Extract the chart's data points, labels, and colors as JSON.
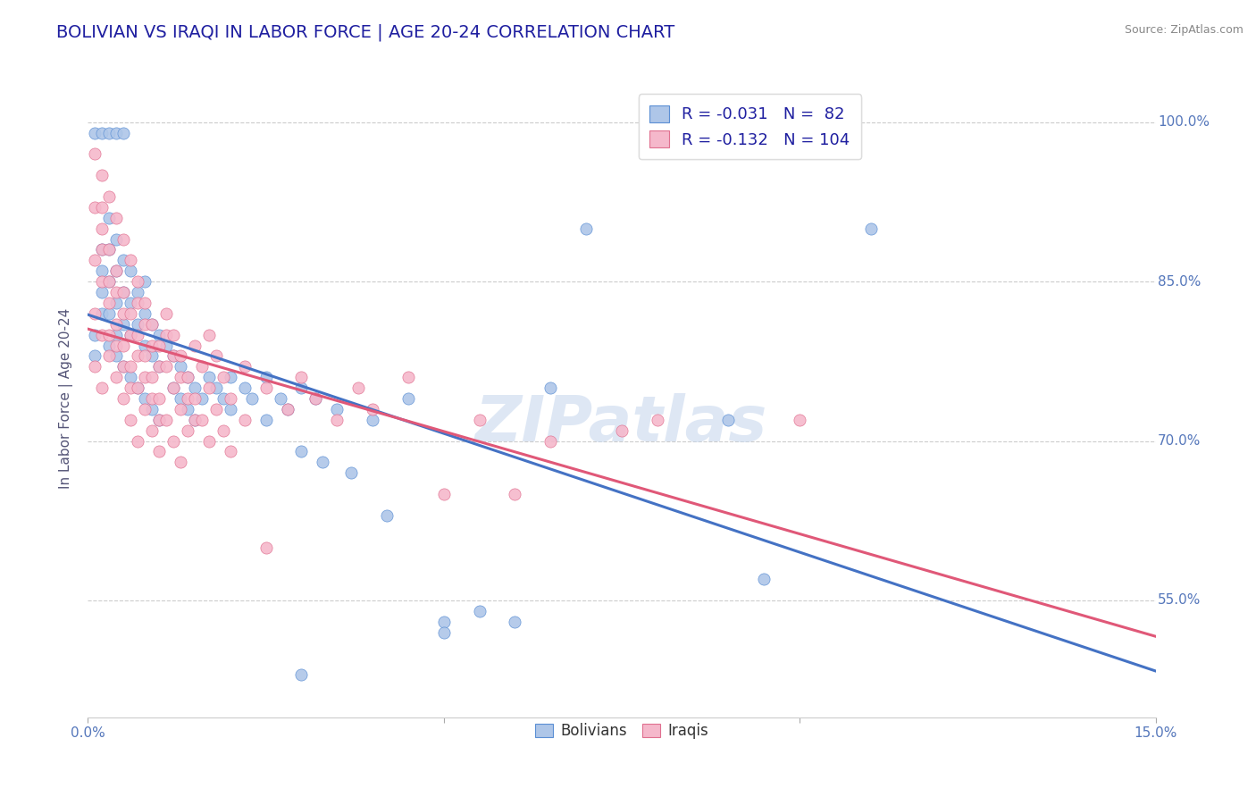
{
  "title": "BOLIVIAN VS IRAQI IN LABOR FORCE | AGE 20-24 CORRELATION CHART",
  "source": "Source: ZipAtlas.com",
  "ylabel": "In Labor Force | Age 20-24",
  "xlim": [
    0.0,
    0.15
  ],
  "ylim": [
    0.44,
    1.04
  ],
  "ytick_right_labels": [
    "55.0%",
    "70.0%",
    "85.0%",
    "100.0%"
  ],
  "ytick_right_values": [
    0.55,
    0.7,
    0.85,
    1.0
  ],
  "xtick_labels": [
    "0.0%",
    "15.0%"
  ],
  "xtick_values": [
    0.0,
    0.15
  ],
  "bolivian_color": "#aec6e8",
  "bolivian_edge_color": "#5b8fd4",
  "iraqi_color": "#f5b8cb",
  "iraqi_edge_color": "#e07090",
  "bolivian_line_color": "#4472c4",
  "iraqi_line_color": "#e05878",
  "R_bolivian": -0.031,
  "N_bolivian": 82,
  "R_iraqi": -0.132,
  "N_iraqi": 104,
  "watermark": "ZIPatlas",
  "title_color": "#1f1fa0",
  "title_fontsize": 14,
  "source_fontsize": 9,
  "axis_label_color": "#555577",
  "tick_color": "#5577bb",
  "legend_label_color": "#1f1fa0",
  "legend_R_color": "#cc2244",
  "marker_size": 90,
  "bolivian_scatter": [
    [
      0.001,
      0.99
    ],
    [
      0.002,
      0.99
    ],
    [
      0.003,
      0.99
    ],
    [
      0.004,
      0.99
    ],
    [
      0.005,
      0.99
    ],
    [
      0.001,
      0.78
    ],
    [
      0.001,
      0.8
    ],
    [
      0.002,
      0.82
    ],
    [
      0.002,
      0.84
    ],
    [
      0.002,
      0.86
    ],
    [
      0.002,
      0.88
    ],
    [
      0.003,
      0.79
    ],
    [
      0.003,
      0.82
    ],
    [
      0.003,
      0.85
    ],
    [
      0.003,
      0.88
    ],
    [
      0.003,
      0.91
    ],
    [
      0.004,
      0.8
    ],
    [
      0.004,
      0.83
    ],
    [
      0.004,
      0.86
    ],
    [
      0.004,
      0.89
    ],
    [
      0.004,
      0.78
    ],
    [
      0.005,
      0.81
    ],
    [
      0.005,
      0.84
    ],
    [
      0.005,
      0.87
    ],
    [
      0.005,
      0.77
    ],
    [
      0.006,
      0.8
    ],
    [
      0.006,
      0.83
    ],
    [
      0.006,
      0.86
    ],
    [
      0.006,
      0.76
    ],
    [
      0.007,
      0.81
    ],
    [
      0.007,
      0.84
    ],
    [
      0.007,
      0.75
    ],
    [
      0.008,
      0.79
    ],
    [
      0.008,
      0.82
    ],
    [
      0.008,
      0.85
    ],
    [
      0.008,
      0.74
    ],
    [
      0.009,
      0.78
    ],
    [
      0.009,
      0.81
    ],
    [
      0.009,
      0.73
    ],
    [
      0.01,
      0.77
    ],
    [
      0.01,
      0.8
    ],
    [
      0.01,
      0.72
    ],
    [
      0.011,
      0.79
    ],
    [
      0.012,
      0.78
    ],
    [
      0.012,
      0.75
    ],
    [
      0.013,
      0.77
    ],
    [
      0.013,
      0.74
    ],
    [
      0.014,
      0.76
    ],
    [
      0.014,
      0.73
    ],
    [
      0.015,
      0.75
    ],
    [
      0.015,
      0.72
    ],
    [
      0.016,
      0.74
    ],
    [
      0.017,
      0.76
    ],
    [
      0.018,
      0.75
    ],
    [
      0.019,
      0.74
    ],
    [
      0.02,
      0.76
    ],
    [
      0.02,
      0.73
    ],
    [
      0.022,
      0.75
    ],
    [
      0.023,
      0.74
    ],
    [
      0.025,
      0.76
    ],
    [
      0.025,
      0.72
    ],
    [
      0.027,
      0.74
    ],
    [
      0.028,
      0.73
    ],
    [
      0.03,
      0.75
    ],
    [
      0.03,
      0.69
    ],
    [
      0.032,
      0.74
    ],
    [
      0.033,
      0.68
    ],
    [
      0.035,
      0.73
    ],
    [
      0.037,
      0.67
    ],
    [
      0.04,
      0.72
    ],
    [
      0.042,
      0.63
    ],
    [
      0.045,
      0.74
    ],
    [
      0.05,
      0.53
    ],
    [
      0.055,
      0.54
    ],
    [
      0.06,
      0.53
    ],
    [
      0.065,
      0.75
    ],
    [
      0.07,
      0.9
    ],
    [
      0.09,
      0.72
    ],
    [
      0.095,
      0.57
    ],
    [
      0.11,
      0.9
    ],
    [
      0.03,
      0.48
    ],
    [
      0.05,
      0.52
    ]
  ],
  "iraqi_scatter": [
    [
      0.001,
      0.97
    ],
    [
      0.001,
      0.92
    ],
    [
      0.001,
      0.87
    ],
    [
      0.001,
      0.82
    ],
    [
      0.001,
      0.77
    ],
    [
      0.002,
      0.95
    ],
    [
      0.002,
      0.9
    ],
    [
      0.002,
      0.85
    ],
    [
      0.002,
      0.8
    ],
    [
      0.002,
      0.75
    ],
    [
      0.002,
      0.92
    ],
    [
      0.002,
      0.88
    ],
    [
      0.003,
      0.93
    ],
    [
      0.003,
      0.88
    ],
    [
      0.003,
      0.83
    ],
    [
      0.003,
      0.78
    ],
    [
      0.003,
      0.85
    ],
    [
      0.003,
      0.8
    ],
    [
      0.004,
      0.91
    ],
    [
      0.004,
      0.86
    ],
    [
      0.004,
      0.81
    ],
    [
      0.004,
      0.76
    ],
    [
      0.004,
      0.84
    ],
    [
      0.004,
      0.79
    ],
    [
      0.005,
      0.89
    ],
    [
      0.005,
      0.84
    ],
    [
      0.005,
      0.79
    ],
    [
      0.005,
      0.74
    ],
    [
      0.005,
      0.82
    ],
    [
      0.005,
      0.77
    ],
    [
      0.006,
      0.87
    ],
    [
      0.006,
      0.82
    ],
    [
      0.006,
      0.77
    ],
    [
      0.006,
      0.72
    ],
    [
      0.006,
      0.8
    ],
    [
      0.006,
      0.75
    ],
    [
      0.007,
      0.85
    ],
    [
      0.007,
      0.8
    ],
    [
      0.007,
      0.75
    ],
    [
      0.007,
      0.7
    ],
    [
      0.007,
      0.83
    ],
    [
      0.007,
      0.78
    ],
    [
      0.008,
      0.83
    ],
    [
      0.008,
      0.78
    ],
    [
      0.008,
      0.73
    ],
    [
      0.008,
      0.81
    ],
    [
      0.008,
      0.76
    ],
    [
      0.009,
      0.81
    ],
    [
      0.009,
      0.76
    ],
    [
      0.009,
      0.71
    ],
    [
      0.009,
      0.79
    ],
    [
      0.009,
      0.74
    ],
    [
      0.01,
      0.79
    ],
    [
      0.01,
      0.74
    ],
    [
      0.01,
      0.69
    ],
    [
      0.01,
      0.77
    ],
    [
      0.01,
      0.72
    ],
    [
      0.011,
      0.82
    ],
    [
      0.011,
      0.77
    ],
    [
      0.011,
      0.72
    ],
    [
      0.011,
      0.8
    ],
    [
      0.012,
      0.8
    ],
    [
      0.012,
      0.75
    ],
    [
      0.012,
      0.7
    ],
    [
      0.012,
      0.78
    ],
    [
      0.013,
      0.78
    ],
    [
      0.013,
      0.73
    ],
    [
      0.013,
      0.68
    ],
    [
      0.013,
      0.76
    ],
    [
      0.014,
      0.76
    ],
    [
      0.014,
      0.71
    ],
    [
      0.014,
      0.74
    ],
    [
      0.015,
      0.79
    ],
    [
      0.015,
      0.74
    ],
    [
      0.015,
      0.72
    ],
    [
      0.016,
      0.77
    ],
    [
      0.016,
      0.72
    ],
    [
      0.017,
      0.8
    ],
    [
      0.017,
      0.75
    ],
    [
      0.017,
      0.7
    ],
    [
      0.018,
      0.78
    ],
    [
      0.018,
      0.73
    ],
    [
      0.019,
      0.76
    ],
    [
      0.019,
      0.71
    ],
    [
      0.02,
      0.74
    ],
    [
      0.02,
      0.69
    ],
    [
      0.022,
      0.77
    ],
    [
      0.022,
      0.72
    ],
    [
      0.025,
      0.75
    ],
    [
      0.025,
      0.6
    ],
    [
      0.028,
      0.73
    ],
    [
      0.03,
      0.76
    ],
    [
      0.032,
      0.74
    ],
    [
      0.035,
      0.72
    ],
    [
      0.038,
      0.75
    ],
    [
      0.04,
      0.73
    ],
    [
      0.045,
      0.76
    ],
    [
      0.05,
      0.65
    ],
    [
      0.055,
      0.72
    ],
    [
      0.06,
      0.65
    ],
    [
      0.065,
      0.7
    ],
    [
      0.075,
      0.71
    ],
    [
      0.08,
      0.72
    ],
    [
      0.1,
      0.72
    ]
  ]
}
